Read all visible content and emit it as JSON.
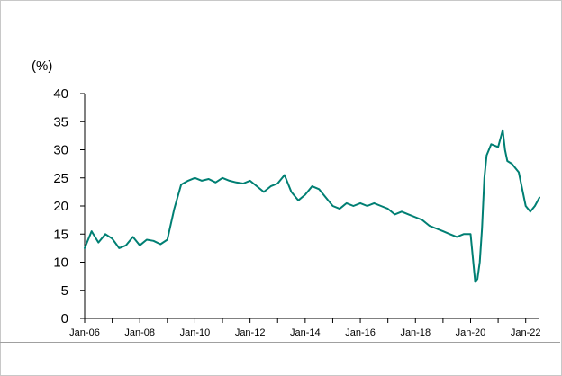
{
  "chart_data": {
    "type": "line",
    "unit_label": "(%)",
    "ylim": [
      0,
      40
    ],
    "yticks": [
      "0",
      "5",
      "10",
      "15",
      "20",
      "25",
      "30",
      "35",
      "40"
    ],
    "xlim": [
      "2006-01",
      "2022-07"
    ],
    "xticks": [
      {
        "label": "Jan-06",
        "date": "2006-01"
      },
      {
        "label": "Jan-08",
        "date": "2008-01"
      },
      {
        "label": "Jan-10",
        "date": "2010-01"
      },
      {
        "label": "Jan-12",
        "date": "2012-01"
      },
      {
        "label": "Jan-14",
        "date": "2014-01"
      },
      {
        "label": "Jan-16",
        "date": "2016-01"
      },
      {
        "label": "Jan-18",
        "date": "2018-01"
      },
      {
        "label": "Jan-20",
        "date": "2020-01"
      },
      {
        "label": "Jan-22",
        "date": "2022-01"
      }
    ],
    "grid": false,
    "legend": "none",
    "series": [
      {
        "color": "#007f73",
        "x": [
          "2006-01",
          "2006-04",
          "2006-07",
          "2006-10",
          "2007-01",
          "2007-04",
          "2007-07",
          "2007-10",
          "2008-01",
          "2008-04",
          "2008-07",
          "2008-10",
          "2009-01",
          "2009-04",
          "2009-07",
          "2009-10",
          "2010-01",
          "2010-04",
          "2010-07",
          "2010-10",
          "2011-01",
          "2011-04",
          "2011-07",
          "2011-10",
          "2012-01",
          "2012-04",
          "2012-07",
          "2012-10",
          "2013-01",
          "2013-04",
          "2013-07",
          "2013-10",
          "2014-01",
          "2014-04",
          "2014-07",
          "2014-10",
          "2015-01",
          "2015-04",
          "2015-07",
          "2015-10",
          "2016-01",
          "2016-04",
          "2016-07",
          "2016-10",
          "2017-01",
          "2017-04",
          "2017-07",
          "2017-10",
          "2018-01",
          "2018-04",
          "2018-07",
          "2018-10",
          "2019-01",
          "2019-04",
          "2019-07",
          "2019-10",
          "2020-01",
          "2020-03",
          "2020-04",
          "2020-05",
          "2020-06",
          "2020-07",
          "2020-08",
          "2020-10",
          "2021-01",
          "2021-03",
          "2021-04",
          "2021-05",
          "2021-07",
          "2021-10",
          "2022-01",
          "2022-03",
          "2022-05",
          "2022-07"
        ],
        "y": [
          12.5,
          15.5,
          13.5,
          15,
          14.2,
          12.5,
          13,
          14.5,
          13,
          14,
          13.8,
          13.2,
          14,
          19.5,
          23.8,
          24.5,
          25,
          24.5,
          24.8,
          24.2,
          25,
          24.5,
          24.2,
          24,
          24.5,
          23.5,
          22.5,
          23.5,
          24,
          25.5,
          22.5,
          21,
          22,
          23.5,
          23,
          21.5,
          20,
          19.5,
          20.5,
          20,
          20.5,
          20,
          20.5,
          20,
          19.5,
          18.5,
          19,
          18.5,
          18,
          17.5,
          16.5,
          16,
          15.5,
          15,
          14.5,
          15,
          15,
          6.5,
          7,
          10,
          16,
          25,
          29,
          31,
          30.5,
          33.5,
          30,
          28,
          27.5,
          26,
          20,
          19,
          20,
          21.5
        ]
      }
    ]
  }
}
